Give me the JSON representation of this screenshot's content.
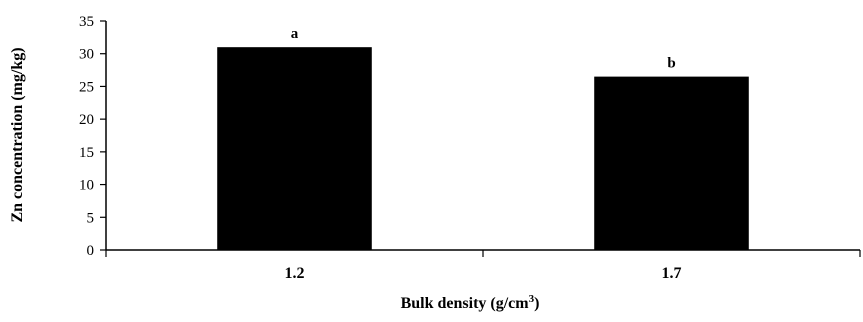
{
  "chart_data": {
    "type": "bar",
    "categories": [
      "1.2",
      "1.7"
    ],
    "values": [
      31,
      26.5
    ],
    "data_labels": [
      "a",
      "b"
    ],
    "xlabel_main": "Bulk density (g/cm",
    "xlabel_sup": "3",
    "xlabel_end": ")",
    "ylabel": "Zn concentration (mg/kg)",
    "ylim": [
      0,
      35
    ],
    "yticks": [
      0,
      5,
      10,
      15,
      20,
      25,
      30,
      35
    ],
    "grid": false,
    "legend": "none",
    "bar_color": "#000000"
  }
}
